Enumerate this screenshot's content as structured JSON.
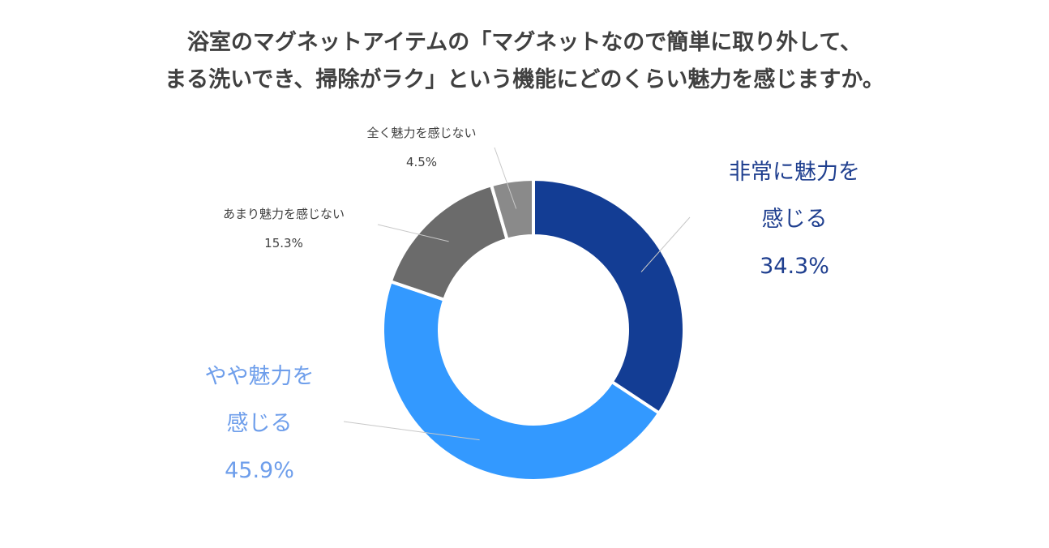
{
  "chart_data": {
    "type": "pie",
    "variant": "donut",
    "title_lines": [
      "浴室のマグネットアイテムの「マグネットなので簡単に取り外して、",
      "まる洗いでき、掃除がラク」という機能にどのくらい魅力を感じますか。"
    ],
    "unit": "%",
    "slices": [
      {
        "key": "very",
        "label_lines": [
          "非常に魅力を",
          "感じる"
        ],
        "value": 34.3,
        "value_label": "34.3%",
        "color": "#133D94",
        "label_color": "#1F3F8F"
      },
      {
        "key": "somewhat",
        "label_lines": [
          "やや魅力を",
          "感じる"
        ],
        "value": 45.9,
        "value_label": "45.9%",
        "color": "#3399FF",
        "label_color": "#6E9EEB"
      },
      {
        "key": "not_much",
        "label_lines": [
          "あまり魅力を感じない"
        ],
        "value": 15.3,
        "value_label": "15.3%",
        "color": "#6B6B6B",
        "label_color": "#404040"
      },
      {
        "key": "not_at_all",
        "label_lines": [
          "全く魅力を感じない"
        ],
        "value": 4.5,
        "value_label": "4.5%",
        "color": "#8A8A8A",
        "label_color": "#404040"
      }
    ]
  }
}
